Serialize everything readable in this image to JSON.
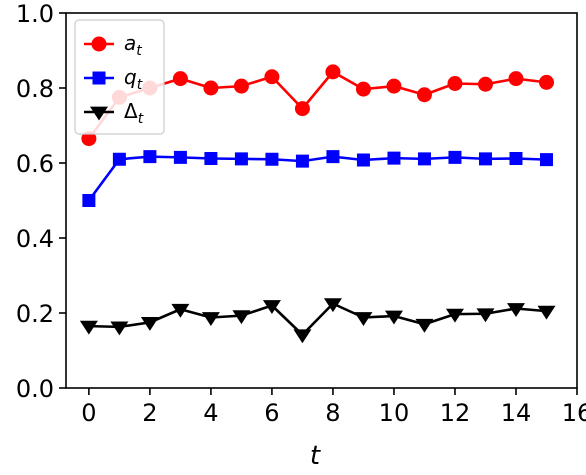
{
  "chart_data": {
    "type": "line",
    "xlabel": "t",
    "ylabel": "",
    "xlim": [
      -0.75,
      16
    ],
    "ylim": [
      0.0,
      1.0
    ],
    "xticks": [
      "0",
      "2",
      "4",
      "6",
      "8",
      "10",
      "12",
      "14",
      "16"
    ],
    "yticks": [
      "0.0",
      "0.2",
      "0.4",
      "0.6",
      "0.8",
      "1.0"
    ],
    "grid": false,
    "legend_position": "upper-left",
    "x": [
      0,
      1,
      2,
      3,
      4,
      5,
      6,
      7,
      8,
      9,
      10,
      11,
      12,
      13,
      14,
      15
    ],
    "series": [
      {
        "name": "a_t",
        "label_main": "a",
        "label_sub": "t",
        "color": "#ff0000",
        "marker": "circle",
        "values": [
          0.665,
          0.775,
          0.8,
          0.825,
          0.8,
          0.805,
          0.83,
          0.745,
          0.843,
          0.797,
          0.805,
          0.782,
          0.812,
          0.81,
          0.825,
          0.815
        ]
      },
      {
        "name": "q_t",
        "label_main": "q",
        "label_sub": "t",
        "color": "#0000ff",
        "marker": "square",
        "values": [
          0.5,
          0.61,
          0.617,
          0.615,
          0.612,
          0.611,
          0.61,
          0.605,
          0.617,
          0.608,
          0.613,
          0.611,
          0.615,
          0.611,
          0.612,
          0.609
        ]
      },
      {
        "name": "Δ_t",
        "label_main": "Δ",
        "label_sub": "t",
        "color": "#000000",
        "marker": "triangle-down",
        "values": [
          0.165,
          0.163,
          0.175,
          0.21,
          0.188,
          0.193,
          0.22,
          0.142,
          0.225,
          0.188,
          0.192,
          0.17,
          0.197,
          0.198,
          0.212,
          0.205
        ]
      }
    ]
  }
}
